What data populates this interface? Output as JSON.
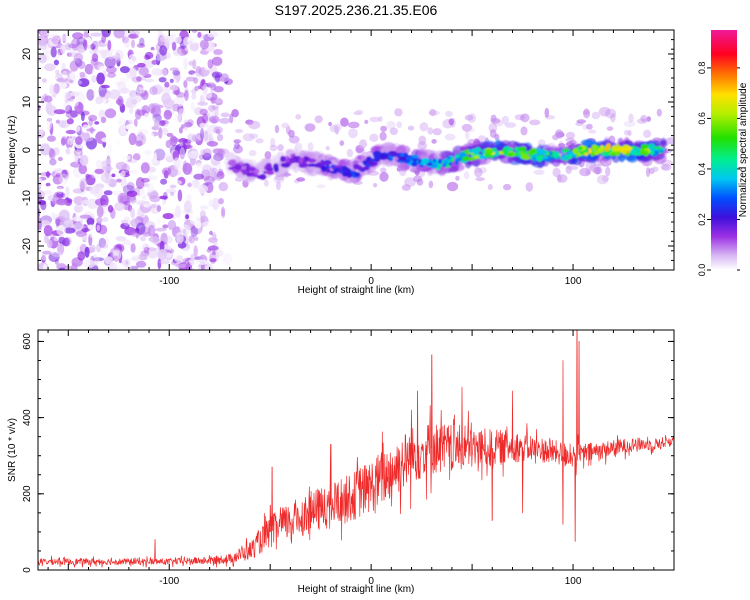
{
  "title": "S197.2025.236.21.35.E06",
  "colors": {
    "snr_line": "#ee2a2a",
    "spectro_purple": "#9933dd",
    "spectro_violet": "#6a16c8",
    "frame": "#000000"
  },
  "chart_data": [
    {
      "type": "heatmap",
      "panel": "spectrogram",
      "xlabel": "Height of straight line (km)",
      "ylabel": "Frequency (Hz)",
      "xlim": [
        -165,
        150
      ],
      "ylim": [
        -25,
        25
      ],
      "xticks": [
        -100,
        0,
        100
      ],
      "xtick_labels": [
        "-100",
        "0",
        "100"
      ],
      "yticks": [
        -20,
        -10,
        0,
        10,
        20
      ],
      "ytick_labels": [
        "-20",
        "-10",
        "0",
        "10",
        "20"
      ],
      "colorbar": {
        "label": "Normalized spectral amplitude",
        "range": [
          0,
          0.95
        ],
        "ticks": [
          0,
          0.2,
          0.4,
          0.6,
          0.8
        ],
        "tick_labels": [
          "0.0",
          "0.2",
          "0.4",
          "0.6",
          "0.8"
        ],
        "colormap": "rainbow (white-lilac → violet → blue → cyan → green → yellow → red → magenta)"
      },
      "features": {
        "diffuse_noise_region_km": [
          -165,
          -75
        ],
        "narrowband_signal": {
          "x": [
            -70,
            -55,
            -40,
            -25,
            -10,
            5,
            20,
            35,
            50,
            65,
            80,
            95,
            110,
            125,
            145
          ],
          "freq_hz": [
            -3,
            -5,
            -2,
            -3,
            -5,
            -1,
            -2,
            -3,
            -1,
            0,
            -1,
            -1,
            0,
            0,
            0
          ],
          "amplitude": [
            0.15,
            0.2,
            0.2,
            0.25,
            0.3,
            0.3,
            0.35,
            0.45,
            0.6,
            0.75,
            0.6,
            0.5,
            0.75,
            0.8,
            0.5
          ]
        }
      }
    },
    {
      "type": "line",
      "panel": "snr",
      "xlabel": "Height of straight line (km)",
      "ylabel": "SNR (10 * v/v)",
      "xlim": [
        -165,
        150
      ],
      "ylim": [
        0,
        630
      ],
      "xticks": [
        -100,
        0,
        100
      ],
      "xtick_labels": [
        "-100",
        "0",
        "100"
      ],
      "yticks": [
        0,
        200,
        400,
        600
      ],
      "ytick_labels": [
        "0",
        "200",
        "400",
        "600"
      ],
      "series": [
        {
          "name": "SNR",
          "envelope_x": [
            -165,
            -140,
            -100,
            -80,
            -70,
            -60,
            -50,
            -40,
            -30,
            -20,
            -10,
            0,
            10,
            20,
            30,
            40,
            50,
            60,
            70,
            80,
            90,
            100,
            110,
            120,
            130,
            140,
            150
          ],
          "envelope_mean": [
            22,
            22,
            22,
            25,
            30,
            50,
            100,
            130,
            150,
            170,
            190,
            220,
            260,
            300,
            320,
            320,
            320,
            320,
            325,
            320,
            310,
            300,
            310,
            320,
            330,
            330,
            340
          ],
          "noise_amplitude": [
            12,
            12,
            12,
            14,
            18,
            35,
            60,
            70,
            80,
            85,
            90,
            100,
            110,
            110,
            100,
            90,
            80,
            70,
            60,
            50,
            45,
            45,
            35,
            30,
            25,
            22,
            20
          ],
          "spikes": [
            {
              "x": -107,
              "y": 80
            },
            {
              "x": -50,
              "y": 170
            },
            {
              "x": -49,
              "y": 270
            },
            {
              "x": -20,
              "y": 330
            },
            {
              "x": 20,
              "y": 420
            },
            {
              "x": 23,
              "y": 470
            },
            {
              "x": 30,
              "y": 565
            },
            {
              "x": 45,
              "y": 480
            },
            {
              "x": 70,
              "y": 470
            },
            {
              "x": 95,
              "y": 550
            },
            {
              "x": 102,
              "y": 630
            },
            {
              "x": 103,
              "y": 600
            },
            {
              "x": 101,
              "y": 75
            },
            {
              "x": 95,
              "y": 120
            },
            {
              "x": 75,
              "y": 150
            },
            {
              "x": 60,
              "y": 130
            }
          ]
        }
      ]
    }
  ]
}
